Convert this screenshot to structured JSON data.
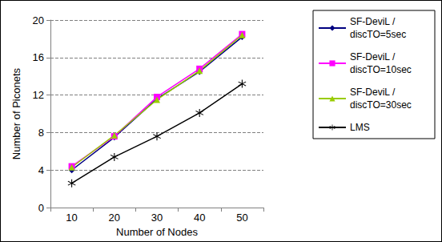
{
  "chart_data": {
    "type": "line",
    "xlabel": "Number of Nodes",
    "ylabel": "Number of Piconets",
    "categories": [
      "10",
      "20",
      "30",
      "40",
      "50"
    ],
    "series": [
      {
        "name": "SF-DeviL / discTO=5sec",
        "color": "#000080",
        "marker": "diamond",
        "values": [
          4.0,
          7.5,
          11.6,
          14.5,
          18.2
        ]
      },
      {
        "name": "SF-DeviL / discTO=10sec",
        "color": "#ff00ff",
        "marker": "square",
        "values": [
          4.4,
          7.6,
          11.8,
          14.8,
          18.5
        ]
      },
      {
        "name": "SF-DeviL / discTO=30sec",
        "color": "#99cc00",
        "marker": "triangle",
        "values": [
          4.3,
          7.7,
          11.5,
          14.6,
          18.4
        ]
      },
      {
        "name": "LMS",
        "color": "#000000",
        "marker": "asterisk",
        "values": [
          2.6,
          5.4,
          7.6,
          10.1,
          13.2
        ]
      }
    ],
    "ylim": [
      0,
      20
    ],
    "yticks": [
      0,
      4,
      8,
      12,
      16,
      20
    ],
    "grid": true,
    "legend": "right"
  }
}
